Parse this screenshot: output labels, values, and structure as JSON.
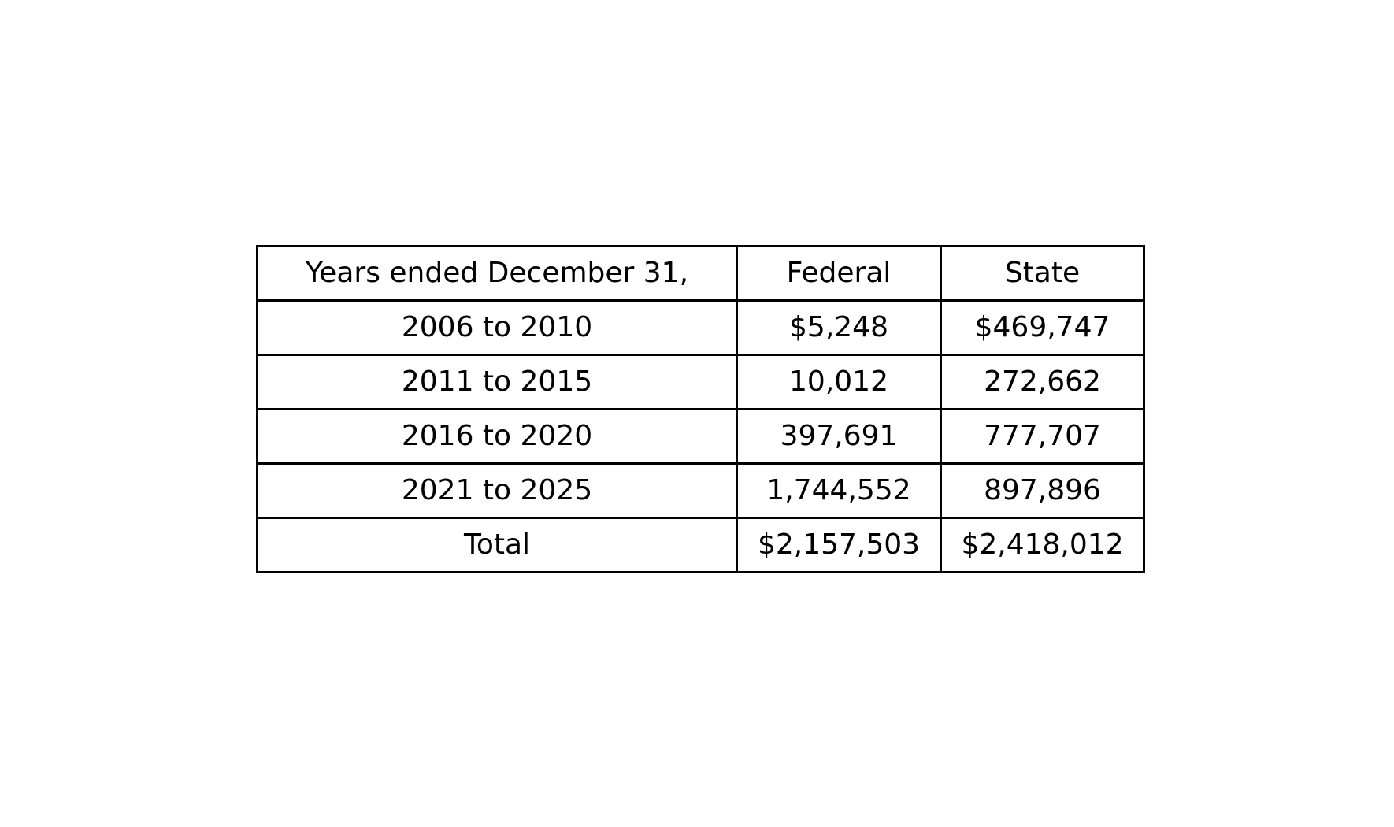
{
  "chart_data": {
    "type": "table",
    "columns": [
      "Years ended December 31,",
      "Federal",
      "State"
    ],
    "rows": [
      {
        "period": "2006 to 2010",
        "federal": "$5,248",
        "state": "$469,747"
      },
      {
        "period": "2011 to 2015",
        "federal": "10,012",
        "state": "272,662"
      },
      {
        "period": "2016 to 2020",
        "federal": "397,691",
        "state": "777,707"
      },
      {
        "period": "2021 to 2025",
        "federal": "1,744,552",
        "state": "897,896"
      },
      {
        "period": "Total",
        "federal": "$2,157,503",
        "state": "$2,418,012"
      }
    ]
  }
}
